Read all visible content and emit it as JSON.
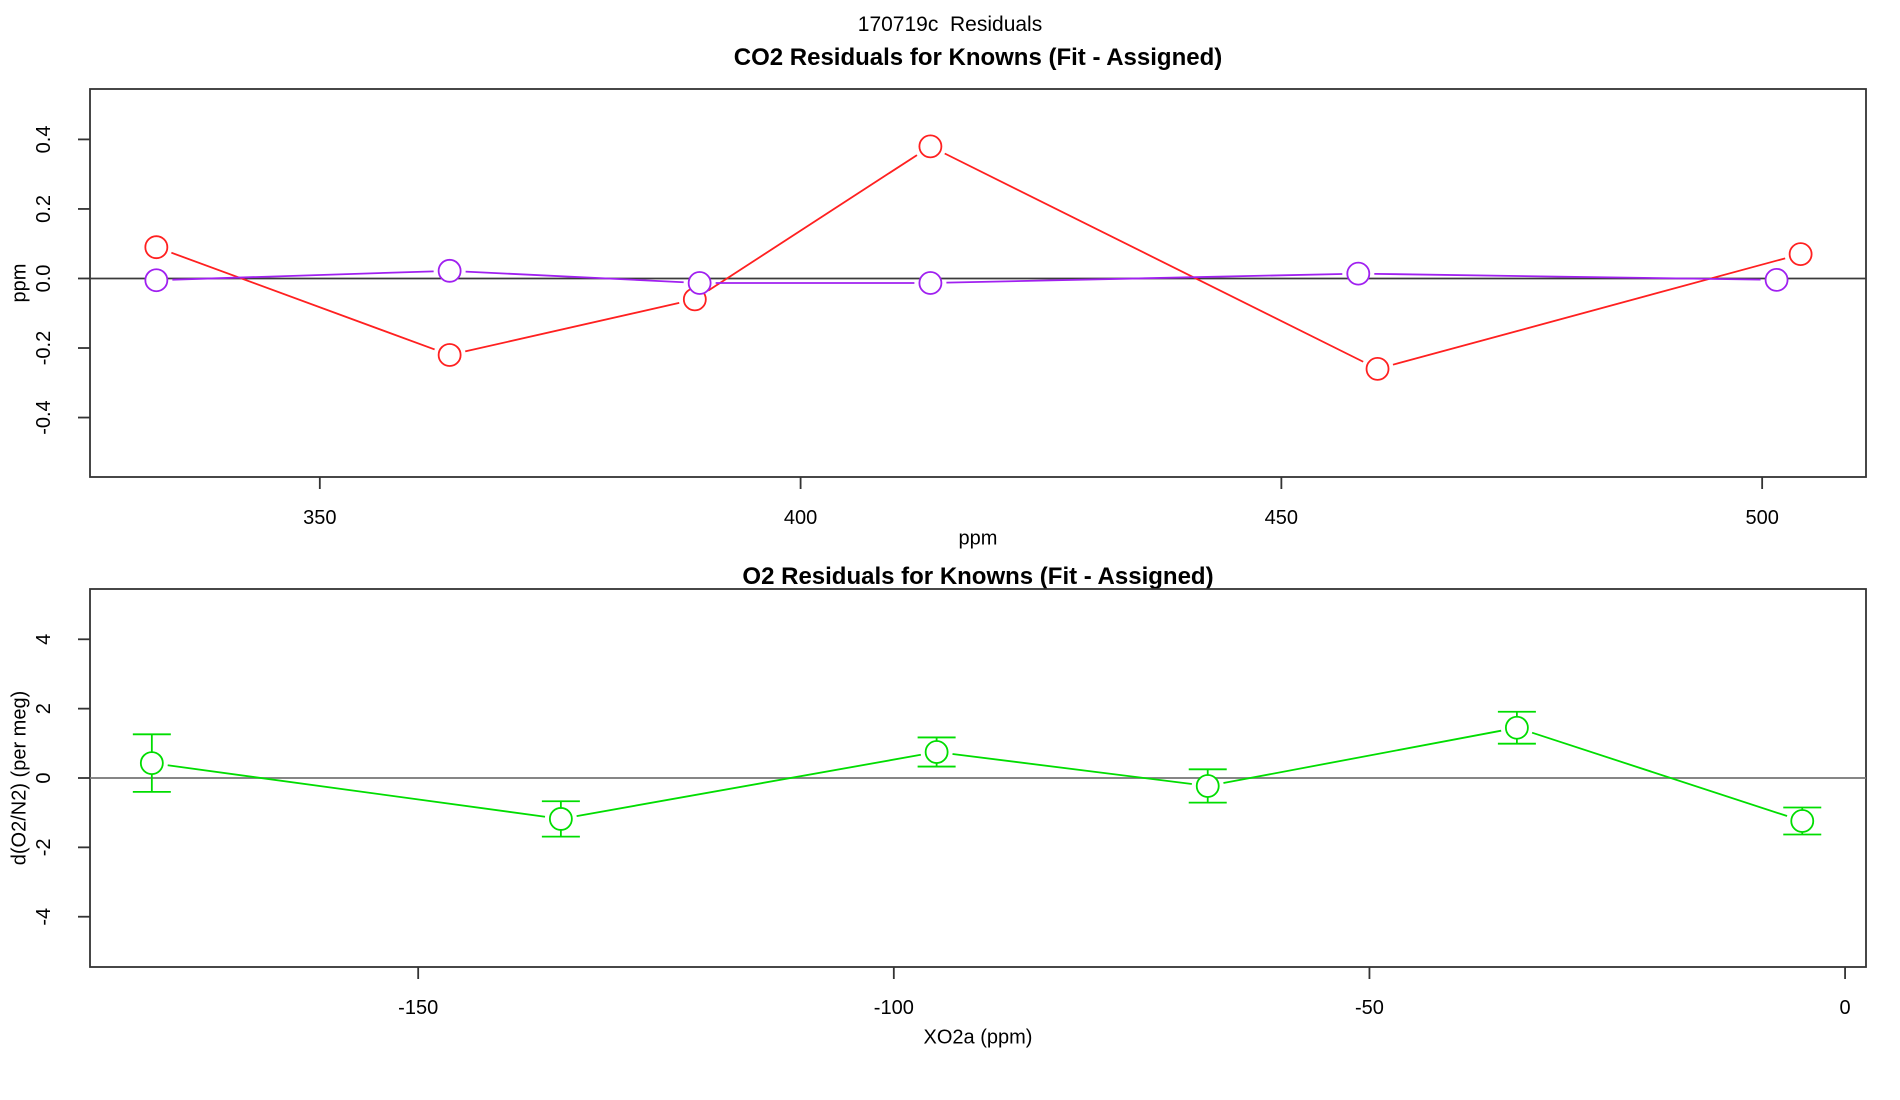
{
  "main_title": "170719c  Residuals",
  "chart_data": [
    {
      "type": "line",
      "title": "CO2 Residuals for Knowns (Fit - Assigned)",
      "xlabel": "ppm",
      "ylabel": "ppm",
      "xlim": [
        326.1,
        510.8
      ],
      "ylim": [
        -0.571,
        0.545
      ],
      "xticks": [
        350,
        400,
        450,
        500
      ],
      "xtick_labels": [
        "350",
        "400",
        "450",
        "500"
      ],
      "yticks": [
        -0.4,
        -0.2,
        0.0,
        0.2,
        0.4
      ],
      "ytick_labels": [
        "-0.4",
        "-0.2",
        "0.0",
        "0.2",
        "0.4"
      ],
      "zero_line": true,
      "grid": false,
      "legend": "none",
      "series": [
        {
          "name": "co2-residual-red",
          "color": "#ff2020",
          "x": [
            333,
            363.5,
            389,
            413.5,
            460,
            504
          ],
          "y": [
            0.09,
            -0.22,
            -0.06,
            0.38,
            -0.26,
            0.07
          ]
        },
        {
          "name": "co2-residual-purple",
          "color": "#a020f0",
          "x": [
            333,
            363.5,
            389.5,
            413.5,
            458,
            501.5
          ],
          "y": [
            -0.005,
            0.022,
            -0.013,
            -0.013,
            0.014,
            -0.004
          ]
        }
      ]
    },
    {
      "type": "line",
      "title": "O2 Residuals for Knowns (Fit - Assigned)",
      "xlabel": "XO2a (ppm)",
      "ylabel": "d(O2/N2) (per meg)",
      "xlim": [
        -184.5,
        2.2
      ],
      "ylim": [
        -5.45,
        5.45
      ],
      "xticks": [
        -150,
        -100,
        -50,
        0
      ],
      "xtick_labels": [
        "-150",
        "-100",
        "-50",
        "0"
      ],
      "yticks": [
        -4,
        -2,
        0,
        2,
        4
      ],
      "ytick_labels": [
        "-4",
        "-2",
        "0",
        "2",
        "4"
      ],
      "zero_line": true,
      "grid": false,
      "legend": "none",
      "series": [
        {
          "name": "o2-residual-green",
          "color": "#00dd00",
          "x": [
            -178,
            -135,
            -95.5,
            -67,
            -34.5,
            -4.5
          ],
          "y": [
            0.43,
            -1.18,
            0.75,
            -0.23,
            1.45,
            -1.24
          ],
          "yerr": [
            0.83,
            0.51,
            0.42,
            0.48,
            0.46,
            0.39
          ]
        }
      ]
    }
  ]
}
